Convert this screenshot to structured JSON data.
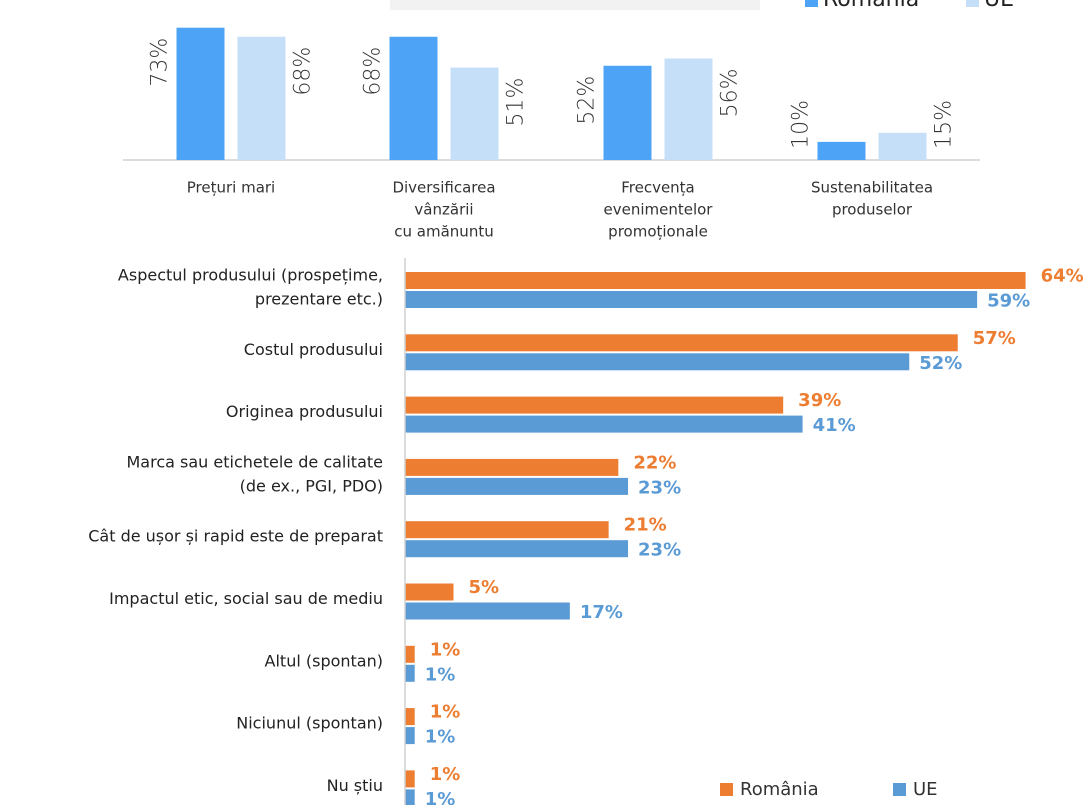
{
  "chart_data": [
    {
      "type": "bar",
      "categories": [
        [
          "Prețuri mari"
        ],
        [
          "Diversificarea",
          "vânzării",
          "cu amănuntu"
        ],
        [
          "Frecvența",
          "evenimentelor",
          "promoționale"
        ],
        [
          "Sustenabilitatea",
          "produselor"
        ]
      ],
      "series": [
        {
          "name": "România",
          "color": "#4da3f5",
          "values": [
            73,
            68,
            52,
            10
          ],
          "value_labels": [
            "73%",
            "68%",
            "52%",
            "10%"
          ]
        },
        {
          "name": "UE",
          "color": "#c5dff8",
          "values": [
            68,
            51,
            56,
            15
          ],
          "value_labels": [
            "68%",
            "51%",
            "56%",
            "15%"
          ]
        }
      ],
      "ylim": [
        0,
        80
      ]
    },
    {
      "type": "hbar",
      "categories": [
        [
          "Aspectul produsului (prospețime,",
          "prezentare etc.)"
        ],
        [
          "Costul produsului"
        ],
        [
          "Originea produsului"
        ],
        [
          "Marca sau etichetele de calitate",
          "(de ex., PGI, PDO)"
        ],
        [
          "Cât de ușor și rapid este de preparat"
        ],
        [
          "Impactul etic, social sau de mediu"
        ],
        [
          "Altul (spontan)"
        ],
        [
          "Niciunul (spontan)"
        ],
        [
          "Nu știu"
        ]
      ],
      "series": [
        {
          "name": "România",
          "color": "#ed7d31",
          "values": [
            64,
            57,
            39,
            22,
            21,
            5,
            1,
            1,
            1
          ],
          "value_labels": [
            "64%",
            "57%",
            "39%",
            "22%",
            "21%",
            "5%",
            "1%",
            "1%",
            "1%"
          ]
        },
        {
          "name": "UE",
          "color": "#5b9bd5",
          "values": [
            59,
            52,
            41,
            23,
            23,
            17,
            1,
            1,
            1
          ],
          "value_labels": [
            "59%",
            "52%",
            "41%",
            "23%",
            "23%",
            "17%",
            "1%",
            "1%",
            "1%"
          ]
        }
      ],
      "xlim": [
        0,
        66
      ]
    }
  ]
}
